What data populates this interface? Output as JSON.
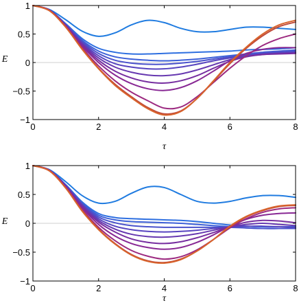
{
  "chart_data": [
    {
      "type": "line",
      "xlabel": "τ",
      "ylabel": "E",
      "xlim": [
        0,
        8
      ],
      "ylim": [
        -1,
        1
      ],
      "xticks": [
        0,
        2,
        4,
        6,
        8
      ],
      "yticks": [
        -1,
        -0.5,
        0,
        0.5,
        1
      ],
      "xtick_labels": [
        "0",
        "2",
        "4",
        "6",
        "8"
      ],
      "ytick_labels": [
        "−1",
        "−0.5",
        "0",
        "0.5",
        "1"
      ],
      "grid": false,
      "legend": "none",
      "x": [
        0,
        0.5,
        1,
        1.5,
        2,
        2.5,
        3,
        3.5,
        4,
        4.5,
        5,
        5.5,
        6,
        6.5,
        7,
        7.5,
        8
      ],
      "series": [
        {
          "color": "#1f7be0",
          "values": [
            1.0,
            0.93,
            0.75,
            0.55,
            0.46,
            0.52,
            0.66,
            0.74,
            0.7,
            0.6,
            0.54,
            0.54,
            0.58,
            0.62,
            0.62,
            0.6,
            0.58
          ]
        },
        {
          "color": "#2e6fe0",
          "values": [
            1.0,
            0.92,
            0.68,
            0.42,
            0.25,
            0.18,
            0.15,
            0.15,
            0.16,
            0.17,
            0.18,
            0.19,
            0.2,
            0.22,
            0.23,
            0.24,
            0.26
          ]
        },
        {
          "color": "#3d60d8",
          "values": [
            1.0,
            0.92,
            0.67,
            0.39,
            0.2,
            0.1,
            0.06,
            0.04,
            0.03,
            0.04,
            0.06,
            0.09,
            0.12,
            0.15,
            0.18,
            0.2,
            0.22
          ]
        },
        {
          "color": "#4a52cc",
          "values": [
            1.0,
            0.92,
            0.66,
            0.37,
            0.16,
            0.04,
            -0.01,
            -0.03,
            -0.03,
            -0.01,
            0.02,
            0.06,
            0.1,
            0.14,
            0.17,
            0.19,
            0.2
          ]
        },
        {
          "color": "#5744c0",
          "values": [
            1.0,
            0.92,
            0.66,
            0.35,
            0.12,
            -0.02,
            -0.08,
            -0.11,
            -0.11,
            -0.08,
            -0.03,
            0.03,
            0.08,
            0.12,
            0.15,
            0.17,
            0.18
          ]
        },
        {
          "color": "#6638b0",
          "values": [
            1.0,
            0.92,
            0.65,
            0.33,
            0.08,
            -0.08,
            -0.17,
            -0.22,
            -0.23,
            -0.2,
            -0.13,
            -0.04,
            0.05,
            0.11,
            0.14,
            0.16,
            0.17
          ]
        },
        {
          "color": "#762ea0",
          "values": [
            1.0,
            0.92,
            0.65,
            0.31,
            0.04,
            -0.15,
            -0.27,
            -0.34,
            -0.36,
            -0.32,
            -0.23,
            -0.1,
            0.02,
            0.1,
            0.14,
            0.15,
            0.16
          ]
        },
        {
          "color": "#882894",
          "values": [
            1.0,
            0.92,
            0.64,
            0.29,
            0.0,
            -0.22,
            -0.37,
            -0.46,
            -0.49,
            -0.44,
            -0.32,
            -0.15,
            0.03,
            0.16,
            0.23,
            0.26,
            0.26
          ]
        },
        {
          "color": "#9c2a80",
          "values": [
            1.0,
            0.91,
            0.63,
            0.26,
            -0.06,
            -0.32,
            -0.52,
            -0.67,
            -0.8,
            -0.78,
            -0.6,
            -0.35,
            -0.1,
            0.12,
            0.3,
            0.42,
            0.5
          ]
        },
        {
          "color": "#c04a3a",
          "values": [
            1.0,
            0.91,
            0.62,
            0.24,
            -0.1,
            -0.38,
            -0.6,
            -0.79,
            -0.9,
            -0.85,
            -0.63,
            -0.33,
            -0.02,
            0.25,
            0.47,
            0.63,
            0.71
          ]
        },
        {
          "color": "#d8642c",
          "values": [
            1.0,
            0.91,
            0.62,
            0.23,
            -0.11,
            -0.4,
            -0.62,
            -0.81,
            -0.92,
            -0.86,
            -0.63,
            -0.32,
            0.0,
            0.27,
            0.5,
            0.66,
            0.74
          ]
        }
      ]
    },
    {
      "type": "line",
      "xlabel": "τ",
      "ylabel": "E",
      "xlim": [
        0,
        8
      ],
      "ylim": [
        -1,
        1
      ],
      "xticks": [
        0,
        2,
        4,
        6,
        8
      ],
      "yticks": [
        -1,
        -0.5,
        0,
        0.5,
        1
      ],
      "xtick_labels": [
        "0",
        "2",
        "4",
        "6",
        "8"
      ],
      "ytick_labels": [
        "−1",
        "−0.5",
        "0",
        "0.5",
        "1"
      ],
      "grid": false,
      "legend": "none",
      "x": [
        0,
        0.5,
        1,
        1.5,
        2,
        2.5,
        3,
        3.5,
        4,
        4.5,
        5,
        5.5,
        6,
        6.5,
        7,
        7.5,
        8
      ],
      "series": [
        {
          "color": "#1f7be0",
          "values": [
            1.0,
            0.93,
            0.72,
            0.48,
            0.35,
            0.38,
            0.52,
            0.63,
            0.62,
            0.5,
            0.38,
            0.35,
            0.38,
            0.44,
            0.48,
            0.48,
            0.45
          ]
        },
        {
          "color": "#2e6fe0",
          "values": [
            1.0,
            0.92,
            0.67,
            0.37,
            0.17,
            0.1,
            0.08,
            0.07,
            0.06,
            0.05,
            0.03,
            0.0,
            -0.03,
            -0.05,
            -0.06,
            -0.06,
            -0.06
          ]
        },
        {
          "color": "#3d60d8",
          "values": [
            1.0,
            0.92,
            0.66,
            0.35,
            0.14,
            0.06,
            0.03,
            0.02,
            0.01,
            0.0,
            -0.02,
            -0.04,
            -0.06,
            -0.08,
            -0.09,
            -0.09,
            -0.09
          ]
        },
        {
          "color": "#4a52cc",
          "values": [
            1.0,
            0.92,
            0.66,
            0.34,
            0.11,
            0.01,
            -0.04,
            -0.06,
            -0.07,
            -0.07,
            -0.07,
            -0.07,
            -0.07,
            -0.08,
            -0.09,
            -0.09,
            -0.09
          ]
        },
        {
          "color": "#5744c0",
          "values": [
            1.0,
            0.92,
            0.65,
            0.32,
            0.08,
            -0.05,
            -0.11,
            -0.14,
            -0.15,
            -0.14,
            -0.12,
            -0.09,
            -0.06,
            -0.05,
            -0.05,
            -0.06,
            -0.07
          ]
        },
        {
          "color": "#6638b0",
          "values": [
            1.0,
            0.92,
            0.65,
            0.31,
            0.05,
            -0.1,
            -0.19,
            -0.23,
            -0.24,
            -0.22,
            -0.18,
            -0.12,
            -0.06,
            -0.02,
            0.0,
            -0.02,
            -0.04
          ]
        },
        {
          "color": "#762ea0",
          "values": [
            1.0,
            0.92,
            0.64,
            0.29,
            0.02,
            -0.15,
            -0.27,
            -0.33,
            -0.35,
            -0.32,
            -0.25,
            -0.16,
            -0.06,
            0.02,
            0.05,
            0.04,
            0.01
          ]
        },
        {
          "color": "#882894",
          "values": [
            1.0,
            0.92,
            0.63,
            0.27,
            -0.02,
            -0.22,
            -0.35,
            -0.42,
            -0.45,
            -0.42,
            -0.33,
            -0.2,
            -0.05,
            0.07,
            0.14,
            0.17,
            0.18
          ]
        },
        {
          "color": "#9c2a80",
          "values": [
            1.0,
            0.91,
            0.62,
            0.24,
            -0.07,
            -0.3,
            -0.47,
            -0.57,
            -0.62,
            -0.58,
            -0.46,
            -0.28,
            -0.08,
            0.08,
            0.19,
            0.25,
            0.27
          ]
        },
        {
          "color": "#c04a3a",
          "values": [
            1.0,
            0.91,
            0.61,
            0.22,
            -0.1,
            -0.35,
            -0.54,
            -0.65,
            -0.68,
            -0.62,
            -0.48,
            -0.28,
            -0.06,
            0.11,
            0.22,
            0.29,
            0.31
          ]
        },
        {
          "color": "#d8642c",
          "values": [
            1.0,
            0.91,
            0.61,
            0.21,
            -0.11,
            -0.36,
            -0.55,
            -0.66,
            -0.69,
            -0.63,
            -0.48,
            -0.28,
            -0.05,
            0.12,
            0.23,
            0.3,
            0.32
          ]
        }
      ]
    }
  ]
}
